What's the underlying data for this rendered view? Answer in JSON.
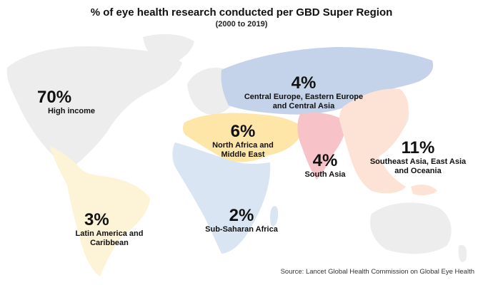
{
  "title": "% of eye health research conducted per GBD Super Region",
  "subtitle": "(2000 to 2019)",
  "source": "Source: Lancet Global Health Commission on Global Eye Health",
  "colors": {
    "high_income": "#ededed",
    "latin_america": "#fdf3d6",
    "central_europe_asia": "#c5d3ea",
    "north_africa_middle_east": "#fde6a8",
    "sub_saharan_africa": "#dae5f4",
    "south_asia": "#f7c3c9",
    "southeast_asia": "#fde3d6"
  },
  "regions": {
    "high_income": {
      "pct": "70%",
      "name": "High income"
    },
    "central_europe_asia": {
      "pct": "4%",
      "name": "Central Europe, Eastern Europe\nand Central Asia"
    },
    "north_africa_middle_east": {
      "pct": "6%",
      "name": "North Africa and\nMiddle East"
    },
    "south_asia": {
      "pct": "4%",
      "name": "South Asia"
    },
    "southeast_asia": {
      "pct": "11%",
      "name": "Southeast Asia, East Asia\nand Oceania"
    },
    "latin_america": {
      "pct": "3%",
      "name": "Latin America and\nCaribbean"
    },
    "sub_saharan_africa": {
      "pct": "2%",
      "name": "Sub-Saharan Africa"
    }
  }
}
